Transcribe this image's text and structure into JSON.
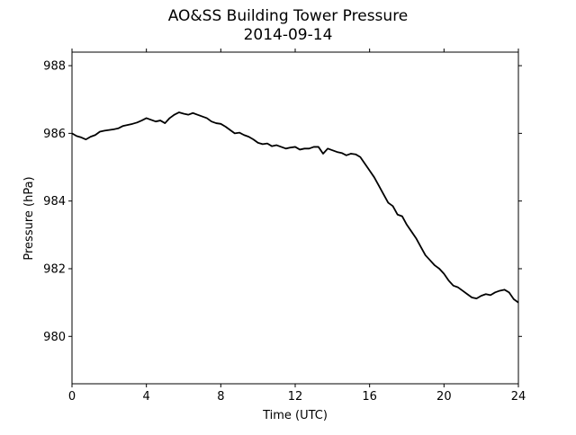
{
  "chart_data": {
    "type": "line",
    "title": "AO&SS Building Tower Pressure",
    "subtitle": "2014-09-14",
    "xlabel": "Time (UTC)",
    "ylabel": "Pressure (hPa)",
    "xlim": [
      0,
      24
    ],
    "ylim": [
      978.6,
      988.4
    ],
    "xticks": [
      0,
      4,
      8,
      12,
      16,
      20,
      24
    ],
    "yticks": [
      980,
      982,
      984,
      986,
      988
    ],
    "grid": false,
    "line_color": "#000000",
    "series": [
      {
        "x": [
          0,
          0.25,
          0.5,
          0.75,
          1.0,
          1.25,
          1.5,
          1.75,
          2.0,
          2.25,
          2.5,
          2.75,
          3.0,
          3.25,
          3.5,
          3.75,
          4.0,
          4.25,
          4.5,
          4.75,
          5.0,
          5.25,
          5.5,
          5.75,
          6.0,
          6.25,
          6.5,
          6.75,
          7.0,
          7.25,
          7.5,
          7.75,
          8.0,
          8.25,
          8.5,
          8.75,
          9.0,
          9.25,
          9.5,
          9.75,
          10.0,
          10.25,
          10.5,
          10.75,
          11.0,
          11.25,
          11.5,
          11.75,
          12.0,
          12.25,
          12.5,
          12.75,
          13.0,
          13.25,
          13.5,
          13.75,
          14.0,
          14.25,
          14.5,
          14.75,
          15.0,
          15.25,
          15.5,
          15.75,
          16.0,
          16.25,
          16.5,
          16.75,
          17.0,
          17.25,
          17.5,
          17.75,
          18.0,
          18.25,
          18.5,
          18.75,
          19.0,
          19.25,
          19.5,
          19.75,
          20.0,
          20.25,
          20.5,
          20.75,
          21.0,
          21.25,
          21.5,
          21.75,
          22.0,
          22.25,
          22.5,
          22.75,
          23.0,
          23.25,
          23.5,
          23.75,
          24.0
        ],
        "y": [
          986.0,
          985.92,
          985.88,
          985.82,
          985.9,
          985.95,
          986.05,
          986.08,
          986.1,
          986.12,
          986.15,
          986.22,
          986.25,
          986.28,
          986.32,
          986.38,
          986.45,
          986.4,
          986.35,
          986.38,
          986.3,
          986.45,
          986.55,
          986.62,
          986.58,
          986.55,
          986.6,
          986.55,
          986.5,
          986.45,
          986.35,
          986.3,
          986.28,
          986.2,
          986.1,
          986.0,
          986.02,
          985.95,
          985.9,
          985.82,
          985.72,
          985.68,
          985.7,
          985.62,
          985.65,
          985.6,
          985.55,
          985.58,
          985.6,
          985.52,
          985.55,
          985.55,
          985.6,
          985.6,
          985.4,
          985.55,
          985.5,
          985.45,
          985.42,
          985.35,
          985.4,
          985.38,
          985.3,
          985.1,
          984.9,
          984.7,
          984.45,
          984.2,
          983.95,
          983.85,
          983.6,
          983.55,
          983.3,
          983.1,
          982.9,
          982.65,
          982.4,
          982.25,
          982.1,
          982.0,
          981.85,
          981.65,
          981.5,
          981.45,
          981.35,
          981.25,
          981.15,
          981.12,
          981.2,
          981.25,
          981.22,
          981.3,
          981.35,
          981.38,
          981.3,
          981.1,
          981.0
        ]
      }
    ]
  }
}
